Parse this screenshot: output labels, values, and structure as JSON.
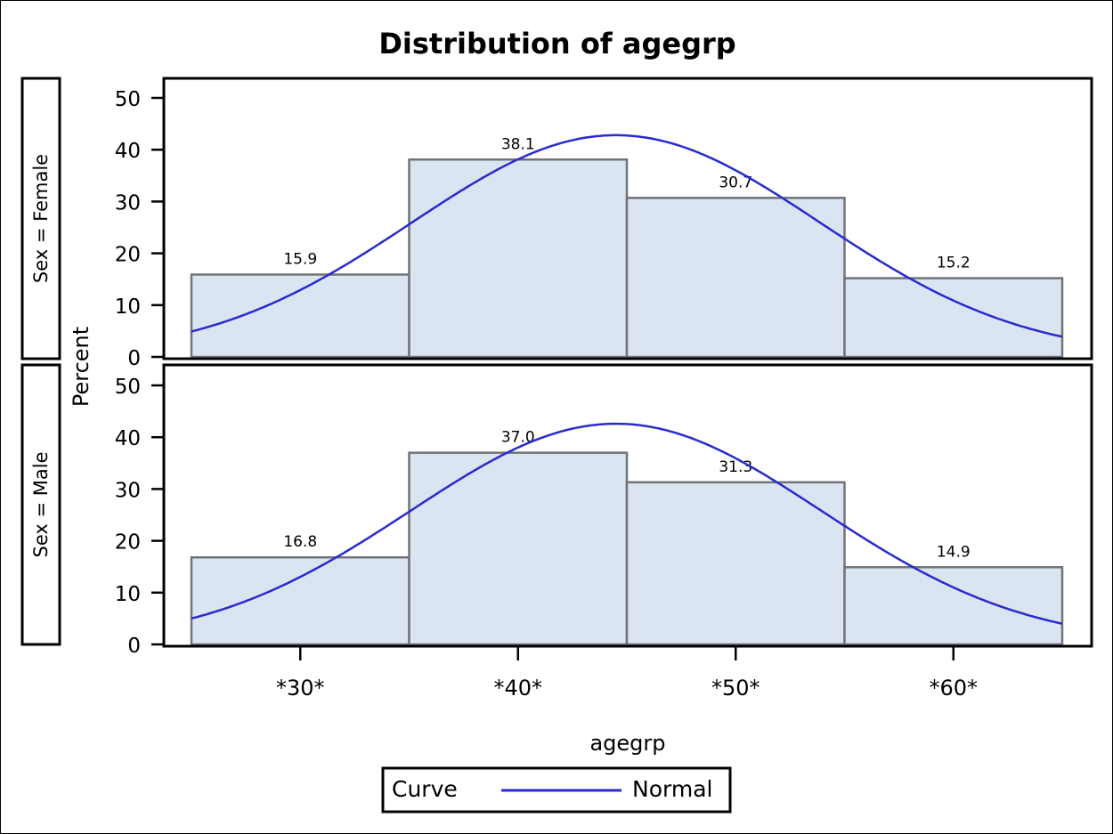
{
  "chart_data": {
    "type": "bar",
    "subtype": "histogram-panel",
    "title": "Distribution of agegrp",
    "xlabel": "agegrp",
    "ylabel": "Percent",
    "categories": [
      "*30*",
      "*40*",
      "*50*",
      "*60*"
    ],
    "ylim": [
      0,
      50
    ],
    "yticks": [
      0,
      10,
      20,
      30,
      40,
      50
    ],
    "grid": false,
    "panels": [
      {
        "label": "Sex = Female",
        "values": [
          15.9,
          38.1,
          30.7,
          15.2
        ],
        "curve": {
          "name": "Normal",
          "peak_percent": 42.8,
          "peak_bin_position": 2.45,
          "left_edge_percent": 4.9,
          "right_edge_percent": 3.9
        }
      },
      {
        "label": "Sex = Male",
        "values": [
          16.8,
          37.0,
          31.3,
          14.9
        ],
        "curve": {
          "name": "Normal",
          "peak_percent": 42.6,
          "peak_bin_position": 2.45,
          "left_edge_percent": 5.0,
          "right_edge_percent": 3.8
        }
      }
    ],
    "series": [
      {
        "name": "Sex = Female",
        "values": [
          15.9,
          38.1,
          30.7,
          15.2
        ]
      },
      {
        "name": "Sex = Male",
        "values": [
          16.8,
          37.0,
          31.3,
          14.9
        ]
      }
    ],
    "legend": {
      "title": "Curve",
      "entries": [
        {
          "label": "Normal",
          "color": "#2a2ad0"
        }
      ],
      "position": "bottom"
    },
    "colors": {
      "bar_fill": "#dbe5f2",
      "bar_edge": "#707478",
      "curve": "#2a2ad0",
      "frame": "#000000"
    }
  },
  "labels": {
    "title": "Distribution of agegrp",
    "xlabel": "agegrp",
    "ylabel": "Percent",
    "legend_title": "Curve",
    "legend_entry": "Normal",
    "panel_female": "Sex = Female",
    "panel_male": "Sex = Male"
  }
}
